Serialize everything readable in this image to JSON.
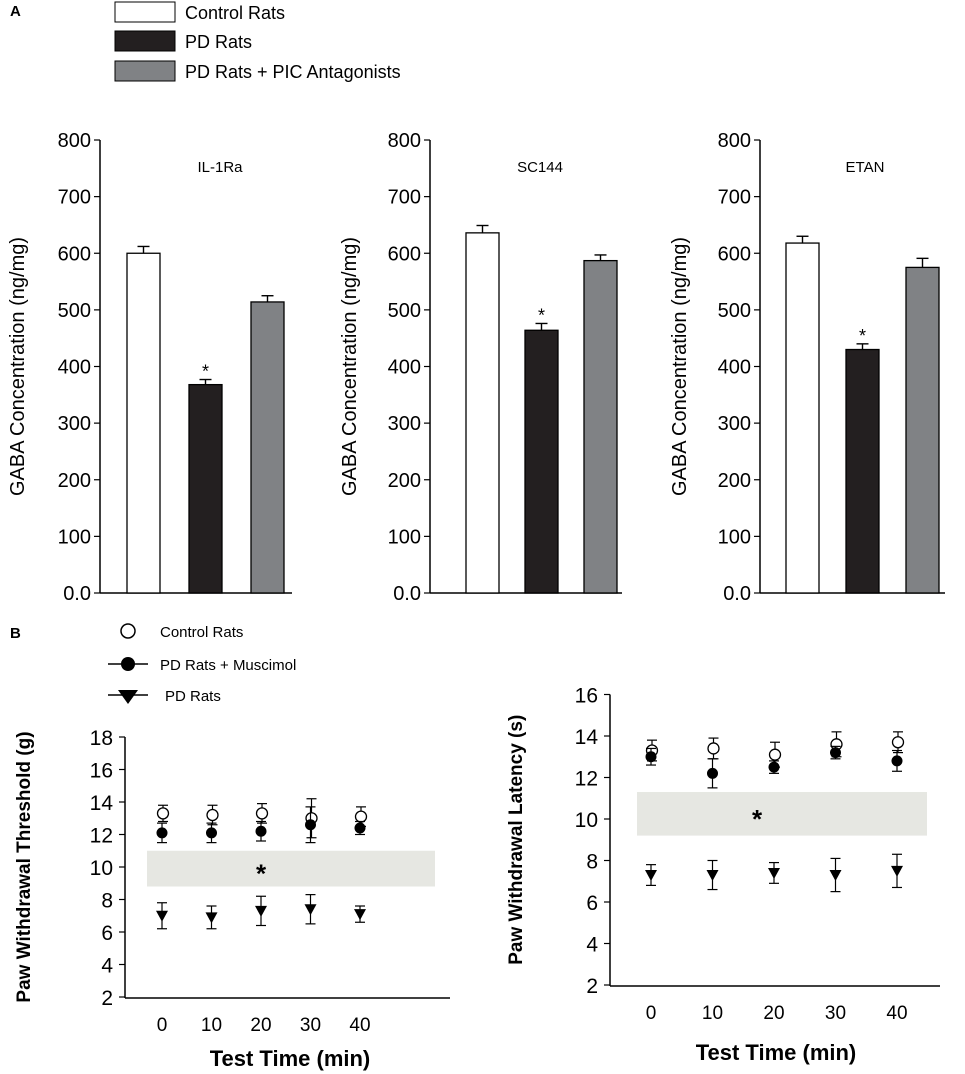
{
  "panel_a_label": "A",
  "panel_b_label": "B",
  "legend_a": [
    {
      "label": "Control Rats",
      "color": "#ffffff"
    },
    {
      "label": "PD Rats",
      "color": "#231f20"
    },
    {
      "label": "PD Rats + PIC Antagonists",
      "color": "#808285"
    }
  ],
  "legend_b": [
    {
      "label": "Control Rats",
      "marker": "open-circle"
    },
    {
      "label": "PD Rats + Muscimol",
      "marker": "filled-circle"
    },
    {
      "label": "PD Rats",
      "marker": "filled-triangle-down"
    }
  ],
  "colors": {
    "control": "#ffffff",
    "pd": "#231f20",
    "pic": "#808285",
    "band": "#e6e7e2"
  },
  "chart_data": [
    {
      "type": "bar",
      "title": "IL-1Ra",
      "ylabel": "GABA Concentration (ng/mg)",
      "ylim": [
        0,
        800
      ],
      "yticks": [
        "0.0",
        "100",
        "200",
        "300",
        "400",
        "500",
        "600",
        "700",
        "800"
      ],
      "categories": [
        "Control Rats",
        "PD Rats",
        "PD Rats + PIC Antagonists"
      ],
      "values": [
        600,
        368,
        514
      ],
      "errors": [
        12,
        9,
        11
      ],
      "significance": [
        "",
        "*",
        ""
      ]
    },
    {
      "type": "bar",
      "title": "SC144",
      "ylabel": "GABA Concentration (ng/mg)",
      "ylim": [
        0,
        800
      ],
      "yticks": [
        "0.0",
        "100",
        "200",
        "300",
        "400",
        "500",
        "600",
        "700",
        "800"
      ],
      "categories": [
        "Control Rats",
        "PD Rats",
        "PD Rats + PIC Antagonists"
      ],
      "values": [
        636,
        464,
        587
      ],
      "errors": [
        13,
        12,
        10
      ],
      "significance": [
        "",
        "*",
        ""
      ]
    },
    {
      "type": "bar",
      "title": "ETAN",
      "ylabel": "GABA Concentration (ng/mg)",
      "ylim": [
        0,
        800
      ],
      "yticks": [
        "0.0",
        "100",
        "200",
        "300",
        "400",
        "500",
        "600",
        "700",
        "800"
      ],
      "categories": [
        "Control Rats",
        "PD Rats",
        "PD Rats + PIC Antagonists"
      ],
      "values": [
        618,
        430,
        575
      ],
      "errors": [
        12,
        10,
        16
      ],
      "significance": [
        "",
        "*",
        ""
      ]
    },
    {
      "type": "scatter",
      "ylabel": "Paw Withdrawal Threshold (g)",
      "xlabel": "Test Time (min)",
      "ylim": [
        2,
        18
      ],
      "yticks": [
        "2",
        "4",
        "6",
        "8",
        "10",
        "12",
        "14",
        "16",
        "18"
      ],
      "x": [
        0,
        10,
        20,
        30,
        40
      ],
      "xticks": [
        "0",
        "10",
        "20",
        "30",
        "40"
      ],
      "series": [
        {
          "name": "Control Rats",
          "marker": "open-circle",
          "values": [
            13.3,
            13.2,
            13.3,
            13.0,
            13.1
          ],
          "errors": [
            0.5,
            0.6,
            0.6,
            1.2,
            0.6
          ]
        },
        {
          "name": "PD Rats + Muscimol",
          "marker": "filled-circle",
          "values": [
            12.1,
            12.1,
            12.2,
            12.6,
            12.4
          ],
          "errors": [
            0.6,
            0.6,
            0.6,
            1.1,
            0.4
          ]
        },
        {
          "name": "PD Rats",
          "marker": "filled-triangle-down",
          "values": [
            7.0,
            6.9,
            7.3,
            7.4,
            7.1
          ],
          "errors": [
            0.8,
            0.7,
            0.9,
            0.9,
            0.5
          ]
        }
      ],
      "band": {
        "y_range": [
          8.8,
          11.0
        ],
        "label": "*"
      }
    },
    {
      "type": "scatter",
      "ylabel": "Paw Withdrawal Latency (s)",
      "xlabel": "Test Time (min)",
      "ylim": [
        2,
        16
      ],
      "yticks": [
        "2",
        "4",
        "6",
        "8",
        "10",
        "12",
        "14",
        "16"
      ],
      "x": [
        0,
        10,
        20,
        30,
        40
      ],
      "xticks": [
        "0",
        "10",
        "20",
        "30",
        "40"
      ],
      "series": [
        {
          "name": "Control Rats",
          "marker": "open-circle",
          "values": [
            13.3,
            13.4,
            13.1,
            13.6,
            13.7
          ],
          "errors": [
            0.5,
            0.5,
            0.6,
            0.6,
            0.5
          ]
        },
        {
          "name": "PD Rats + Muscimol",
          "marker": "filled-circle",
          "values": [
            13.0,
            12.2,
            12.5,
            13.2,
            12.8
          ],
          "errors": [
            0.4,
            0.7,
            0.3,
            0.3,
            0.5
          ]
        },
        {
          "name": "PD Rats",
          "marker": "filled-triangle-down",
          "values": [
            7.3,
            7.3,
            7.4,
            7.3,
            7.5
          ],
          "errors": [
            0.5,
            0.7,
            0.5,
            0.8,
            0.8
          ]
        }
      ],
      "band": {
        "y_range": [
          9.2,
          11.3
        ],
        "label": "*"
      }
    }
  ]
}
